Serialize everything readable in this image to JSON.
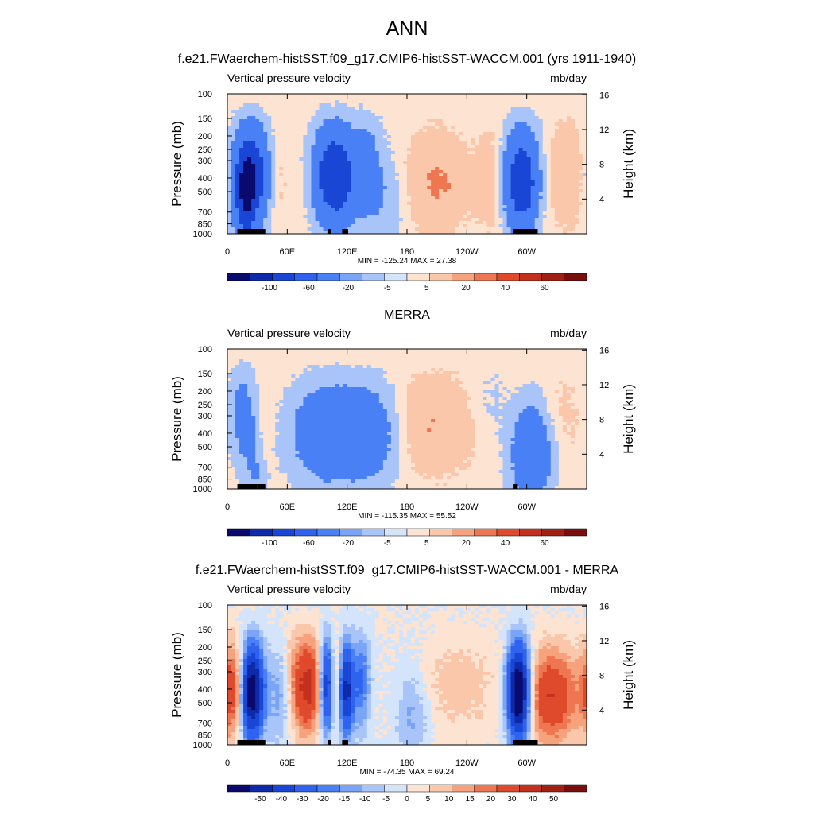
{
  "figure": {
    "title": "ANN"
  },
  "colors": {
    "model_obs_scale": [
      "#0a0a6e",
      "#0d2aaa",
      "#1a46d6",
      "#2f62ee",
      "#4a80f5",
      "#7aa4f6",
      "#a8c4f8",
      "#d3e4fb",
      "#fde4d2",
      "#fbc7ab",
      "#f6a27d",
      "#ee7650",
      "#e04a2c",
      "#c3301e",
      "#a02014",
      "#780f0c"
    ],
    "diff_scale": [
      "#0a0a6e",
      "#0d2aaa",
      "#1a46d6",
      "#2f62ee",
      "#4a80f5",
      "#7aa4f6",
      "#a8c4f8",
      "#d3e4fb",
      "#fde4d2",
      "#fbc7ab",
      "#f6a27d",
      "#ee7650",
      "#e04a2c",
      "#c3301e",
      "#a02014",
      "#780f0c"
    ],
    "land": "#000000"
  },
  "chart_data": [
    {
      "type": "heatmap",
      "title": "f.e21.FWaerchem-histSST.f09_g17.CMIP6-histSST-WACCM.001 (yrs 1911-1940)",
      "left_label": "Vertical pressure velocity",
      "right_label": "mb/day",
      "ylabel": "Pressure (mb)",
      "ylabel_right": "Height (km)",
      "x_ticks": [
        "0",
        "60E",
        "120E",
        "180",
        "120W",
        "60W"
      ],
      "x_tick_lon": [
        0,
        60,
        120,
        180,
        240,
        300
      ],
      "xlim": [
        0,
        360
      ],
      "y_ticks": [
        "100",
        "150",
        "200",
        "250",
        "300",
        "400",
        "500",
        "700",
        "850",
        "1000"
      ],
      "y_ticks_right": [
        "16",
        "12",
        "8",
        "4"
      ],
      "ylim": [
        100,
        1000
      ],
      "y_log": true,
      "min_max": "MIN = -125.24  MAX =  27.38",
      "colorbar_labels": [
        "-100",
        "-60",
        "-20",
        "-5",
        "5",
        "20",
        "40",
        "60"
      ],
      "features": [
        {
          "lon": 25,
          "p": 380,
          "w": 14,
          "v": -90
        },
        {
          "lon": 18,
          "p": 600,
          "w": 7,
          "v": -60
        },
        {
          "lon": 47,
          "p": 400,
          "w": 9,
          "v": 20
        },
        {
          "lon": 100,
          "p": 380,
          "w": 11,
          "v": -70
        },
        {
          "lon": 115,
          "p": 400,
          "w": 9,
          "v": -60
        },
        {
          "lon": 138,
          "p": 350,
          "w": 11,
          "v": -40
        },
        {
          "lon": 160,
          "p": 600,
          "w": 12,
          "v": -15
        },
        {
          "lon": 210,
          "p": 420,
          "w": 22,
          "v": 22
        },
        {
          "lon": 265,
          "p": 420,
          "w": 10,
          "v": 15
        },
        {
          "lon": 295,
          "p": 420,
          "w": 12,
          "v": -95
        },
        {
          "lon": 340,
          "p": 380,
          "w": 16,
          "v": 20
        }
      ],
      "land": [
        [
          10,
          30
        ],
        [
          30,
          38
        ],
        [
          101,
          104
        ],
        [
          115,
          121
        ],
        [
          286,
          311
        ]
      ]
    },
    {
      "type": "heatmap",
      "title": "MERRA",
      "left_label": "Vertical pressure velocity",
      "right_label": "mb/day",
      "ylabel": "Pressure (mb)",
      "ylabel_right": "Height (km)",
      "x_ticks": [
        "0",
        "60E",
        "120E",
        "180",
        "120W",
        "60W"
      ],
      "x_tick_lon": [
        0,
        60,
        120,
        180,
        240,
        300
      ],
      "xlim": [
        0,
        360
      ],
      "y_ticks": [
        "100",
        "150",
        "200",
        "250",
        "300",
        "400",
        "500",
        "700",
        "850",
        "1000"
      ],
      "y_ticks_right": [
        "16",
        "12",
        "8",
        "4"
      ],
      "ylim": [
        100,
        1000
      ],
      "y_log": true,
      "min_max": "MIN = -115.35  MAX =  55.52",
      "colorbar_labels": [
        "-100",
        "-60",
        "-20",
        "-5",
        "5",
        "20",
        "40",
        "60"
      ],
      "features": [
        {
          "lon": 15,
          "p": 300,
          "w": 10,
          "v": -30
        },
        {
          "lon": 35,
          "p": 450,
          "w": 6,
          "v": 15
        },
        {
          "lon": 30,
          "p": 700,
          "w": 8,
          "v": -25
        },
        {
          "lon": 95,
          "p": 400,
          "w": 22,
          "v": -45
        },
        {
          "lon": 140,
          "p": 400,
          "w": 22,
          "v": -45
        },
        {
          "lon": 205,
          "p": 350,
          "w": 30,
          "v": 20
        },
        {
          "lon": 262,
          "p": 250,
          "w": 12,
          "v": -8
        },
        {
          "lon": 305,
          "p": 550,
          "w": 14,
          "v": -55
        },
        {
          "lon": 335,
          "p": 300,
          "w": 18,
          "v": 8
        }
      ],
      "land": [
        [
          10,
          30
        ],
        [
          30,
          38
        ],
        [
          286,
          291
        ]
      ]
    },
    {
      "type": "heatmap",
      "title": "f.e21.FWaerchem-histSST.f09_g17.CMIP6-histSST-WACCM.001 - MERRA",
      "left_label": "Vertical pressure velocity",
      "right_label": "mb/day",
      "ylabel": "Pressure (mb)",
      "ylabel_right": "Height (km)",
      "x_ticks": [
        "0",
        "60E",
        "120E",
        "180",
        "120W",
        "60W"
      ],
      "x_tick_lon": [
        0,
        60,
        120,
        180,
        240,
        300
      ],
      "xlim": [
        0,
        360
      ],
      "y_ticks": [
        "100",
        "150",
        "200",
        "250",
        "300",
        "400",
        "500",
        "700",
        "850",
        "1000"
      ],
      "y_ticks_right": [
        "16",
        "12",
        "8",
        "4"
      ],
      "ylim": [
        100,
        1000
      ],
      "y_log": true,
      "min_max": "MIN = -74.35  MAX =  69.24",
      "colorbar_labels": [
        "-50",
        "-40",
        "-30",
        "-20",
        "-15",
        "-10",
        "-5",
        "0",
        "5",
        "10",
        "15",
        "20",
        "30",
        "40",
        "50"
      ],
      "features": [
        {
          "lon": 5,
          "p": 400,
          "w": 8,
          "v": 25
        },
        {
          "lon": 25,
          "p": 420,
          "w": 8,
          "v": -60
        },
        {
          "lon": 55,
          "p": 420,
          "w": 10,
          "v": -20
        },
        {
          "lon": 78,
          "p": 380,
          "w": 16,
          "v": 35
        },
        {
          "lon": 100,
          "p": 380,
          "w": 6,
          "v": -55
        },
        {
          "lon": 110,
          "p": 380,
          "w": 6,
          "v": 30
        },
        {
          "lon": 118,
          "p": 400,
          "w": 6,
          "v": -55
        },
        {
          "lon": 135,
          "p": 350,
          "w": 6,
          "v": -20
        },
        {
          "lon": 185,
          "p": 600,
          "w": 12,
          "v": -12
        },
        {
          "lon": 230,
          "p": 380,
          "w": 30,
          "v": 8
        },
        {
          "lon": 292,
          "p": 420,
          "w": 8,
          "v": -70
        },
        {
          "lon": 325,
          "p": 450,
          "w": 18,
          "v": 30
        }
      ],
      "land": [
        [
          10,
          30
        ],
        [
          30,
          38
        ],
        [
          101,
          104
        ],
        [
          115,
          121
        ],
        [
          286,
          311
        ]
      ]
    }
  ]
}
